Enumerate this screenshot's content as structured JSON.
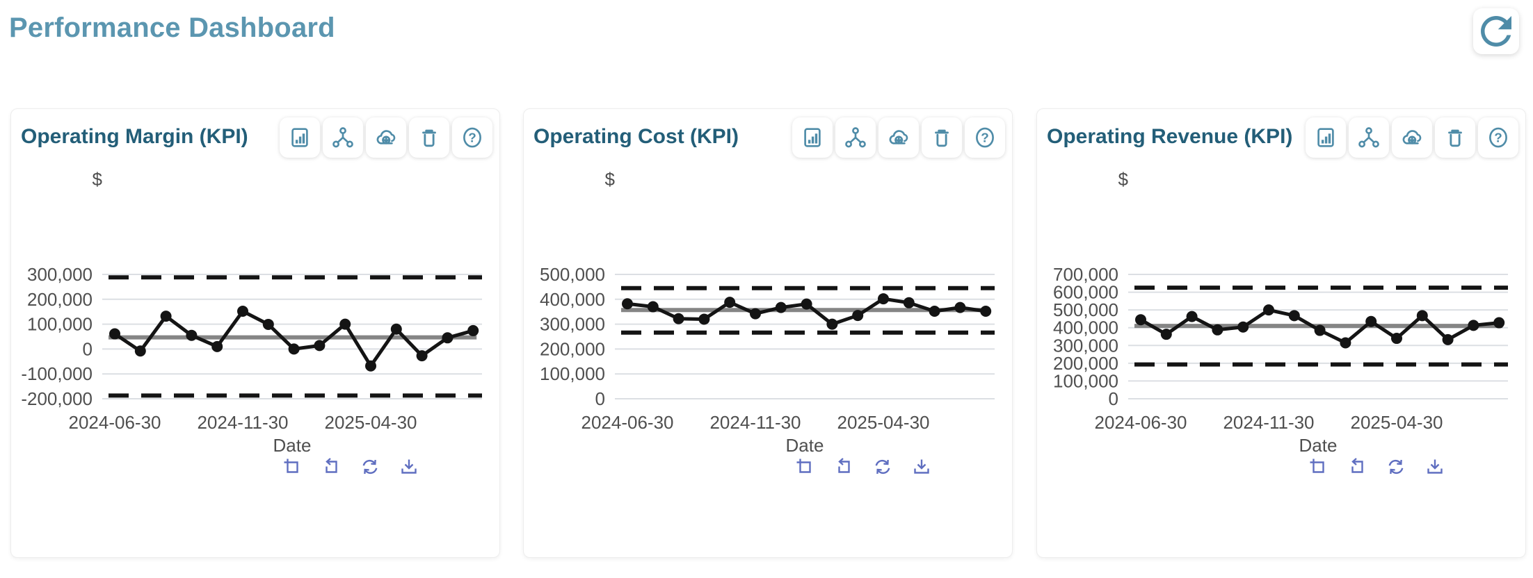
{
  "header": {
    "title": "Performance Dashboard",
    "refresh_icon": "refresh-icon"
  },
  "colors": {
    "page_title": "#5b96b0",
    "card_title": "#235e78",
    "header_icon": "#4f8ca8",
    "toolbar_icon": "#5f6ec0",
    "axis_text": "#4f4f4f",
    "gridline": "#dcdfe3",
    "center_line": "#858585",
    "series_line": "#141414"
  },
  "card_header_icons": [
    "bar-chart-icon",
    "share-icon",
    "cloud-download-icon",
    "trash-icon",
    "help-icon"
  ],
  "chart_toolbar_icons": [
    "zoom-box-icon",
    "reset-zoom-icon",
    "refresh-chart-icon",
    "download-chart-icon"
  ],
  "chart_data": [
    {
      "type": "line",
      "title": "Operating Margin (KPI)",
      "ylabel": "$",
      "xlabel": "Date",
      "x": [
        "2024-06-30",
        "2024-07-31",
        "2024-08-31",
        "2024-09-30",
        "2024-10-31",
        "2024-11-30",
        "2024-12-31",
        "2025-01-31",
        "2025-02-28",
        "2025-03-31",
        "2025-04-30",
        "2025-05-31",
        "2025-06-30",
        "2025-07-31",
        "2025-08-31"
      ],
      "values": [
        61000,
        -8000,
        132000,
        55000,
        10000,
        152000,
        99000,
        0,
        14000,
        100000,
        -68000,
        80000,
        -27000,
        45000,
        74000
      ],
      "center_line": 47000,
      "upper_limit": 288000,
      "lower_limit": -187000,
      "y_ticks": [
        300000,
        200000,
        100000,
        0,
        -100000,
        -200000
      ],
      "ylim": [
        -200000,
        300000
      ],
      "x_tick_indices": [
        0,
        5,
        10
      ],
      "x_tick_labels": [
        "2024-06-30",
        "2024-11-30",
        "2025-04-30"
      ],
      "grid": true,
      "legend": "none"
    },
    {
      "type": "line",
      "title": "Operating Cost (KPI)",
      "ylabel": "$",
      "xlabel": "Date",
      "x": [
        "2024-06-30",
        "2024-07-31",
        "2024-08-31",
        "2024-09-30",
        "2024-10-31",
        "2024-11-30",
        "2024-12-31",
        "2025-01-31",
        "2025-02-28",
        "2025-03-31",
        "2025-04-30",
        "2025-05-31",
        "2025-06-30",
        "2025-07-31",
        "2025-08-31"
      ],
      "values": [
        382000,
        370000,
        322000,
        320000,
        388000,
        342000,
        367000,
        381000,
        300000,
        335000,
        402000,
        386000,
        352000,
        367000,
        352000
      ],
      "center_line": 357000,
      "upper_limit": 445000,
      "lower_limit": 266000,
      "y_ticks": [
        500000,
        400000,
        300000,
        200000,
        100000,
        0
      ],
      "ylim": [
        0,
        500000
      ],
      "x_tick_indices": [
        0,
        5,
        10
      ],
      "x_tick_labels": [
        "2024-06-30",
        "2024-11-30",
        "2025-04-30"
      ],
      "grid": true,
      "legend": "none"
    },
    {
      "type": "line",
      "title": "Operating Revenue (KPI)",
      "ylabel": "$",
      "xlabel": "Date",
      "x": [
        "2024-06-30",
        "2024-07-31",
        "2024-08-31",
        "2024-09-30",
        "2024-10-31",
        "2024-11-30",
        "2024-12-31",
        "2025-01-31",
        "2025-02-28",
        "2025-03-31",
        "2025-04-30",
        "2025-05-31",
        "2025-06-30",
        "2025-07-31",
        "2025-08-31"
      ],
      "values": [
        445000,
        363000,
        463000,
        388000,
        404000,
        500000,
        468000,
        385000,
        315000,
        435000,
        340000,
        468000,
        333000,
        413000,
        428000
      ],
      "center_line": 410000,
      "upper_limit": 625000,
      "lower_limit": 193000,
      "y_ticks": [
        700000,
        600000,
        500000,
        400000,
        300000,
        200000,
        100000,
        0
      ],
      "ylim": [
        0,
        700000
      ],
      "x_tick_indices": [
        0,
        5,
        10
      ],
      "x_tick_labels": [
        "2024-06-30",
        "2024-11-30",
        "2025-04-30"
      ],
      "grid": true,
      "legend": "none"
    }
  ]
}
